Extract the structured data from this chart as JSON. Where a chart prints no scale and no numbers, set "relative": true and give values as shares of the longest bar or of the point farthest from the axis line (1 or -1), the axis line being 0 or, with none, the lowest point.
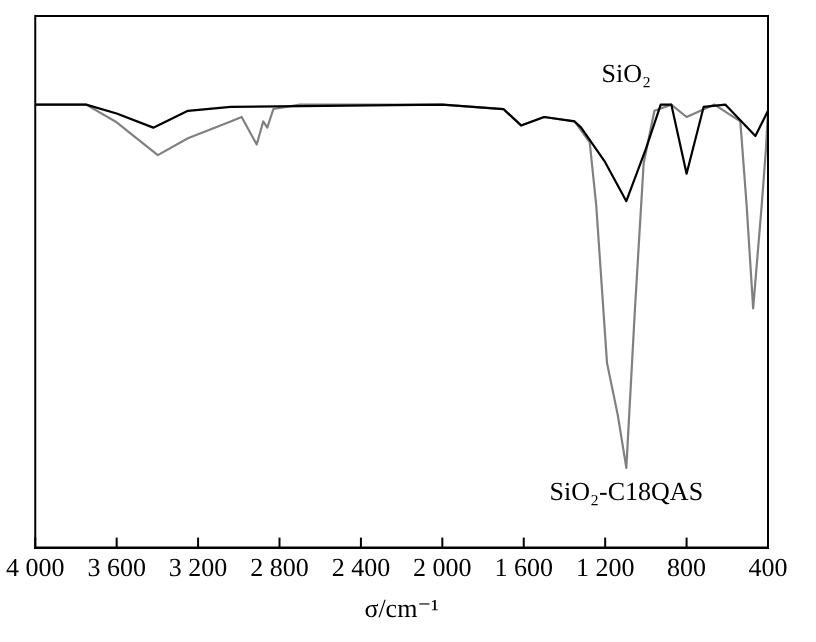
{
  "chart_data": {
    "type": "line",
    "relative": true,
    "xlabel": "σ/cm⁻¹",
    "xlim": [
      4000,
      400
    ],
    "xticks": [
      {
        "value": 4000,
        "label": "4 000"
      },
      {
        "value": 3600,
        "label": "3 600"
      },
      {
        "value": 3200,
        "label": "3 200"
      },
      {
        "value": 2800,
        "label": "2 800"
      },
      {
        "value": 2400,
        "label": "2 400"
      },
      {
        "value": 2000,
        "label": "2 000"
      },
      {
        "value": 1600,
        "label": "1 600"
      },
      {
        "value": 1200,
        "label": "1 200"
      },
      800,
      400
    ],
    "tick_labels": "x",
    "grid": false,
    "legend": false,
    "series": [
      {
        "name": "SiO₂",
        "color": "#000000",
        "x": [
          4000,
          3750,
          3600,
          3420,
          3250,
          3040,
          2000,
          1700,
          1613,
          1500,
          1350,
          1318,
          1200,
          1096,
          1000,
          927,
          875,
          800,
          716,
          610,
          462,
          400
        ],
        "values": [
          1.0,
          1.0,
          0.98,
          0.948,
          0.986,
          0.995,
          1.0,
          0.99,
          0.953,
          0.972,
          0.962,
          0.948,
          0.87,
          0.782,
          0.9,
          1.0,
          1.0,
          0.844,
          0.995,
          1.0,
          0.929,
          0.986
        ]
      },
      {
        "name": "SiO₂-C18QAS",
        "color": "#808080",
        "x": [
          4000,
          3750,
          3600,
          3398,
          3250,
          3040,
          2986,
          2912,
          2880,
          2860,
          2830,
          2700,
          2000,
          1700,
          1613,
          1500,
          1350,
          1276,
          1244,
          1191,
          1138,
          1096,
          1054,
          1011,
          958,
          875,
          800,
          663,
          536,
          505,
          473,
          431,
          410,
          400
        ],
        "values": [
          1.0,
          1.0,
          0.96,
          0.886,
          0.924,
          0.962,
          0.972,
          0.91,
          0.962,
          0.948,
          0.99,
          1.0,
          1.0,
          0.99,
          0.953,
          0.972,
          0.962,
          0.915,
          0.773,
          0.417,
          0.299,
          0.18,
          0.536,
          0.867,
          0.986,
          1.0,
          0.972,
          1.0,
          0.962,
          0.773,
          0.54,
          0.773,
          0.9,
          0.986
        ]
      }
    ]
  }
}
